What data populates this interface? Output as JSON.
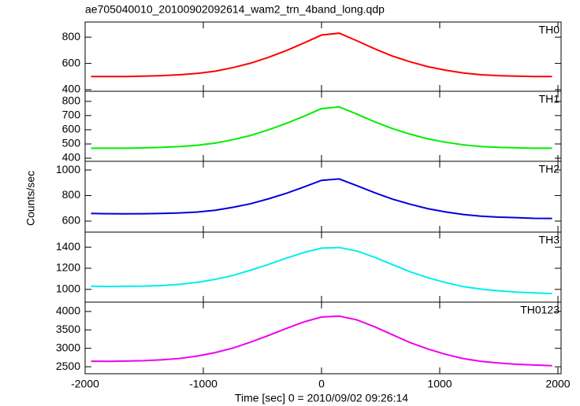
{
  "chart_data": {
    "type": "line",
    "title": "ae705040010_20100902092614_wam2_trn_4band_long.qdp",
    "xlabel": "Time [sec] 0 = 2010/09/02 09:26:14",
    "ylabel": "Counts/sec",
    "xlim": [
      -2000,
      2000
    ],
    "xticks": [
      -2000,
      -1000,
      0,
      1000,
      2000
    ],
    "x": [
      -1950,
      -1800,
      -1650,
      -1500,
      -1350,
      -1200,
      -1050,
      -900,
      -750,
      -600,
      -450,
      -300,
      -150,
      0,
      150,
      300,
      450,
      600,
      750,
      900,
      1050,
      1200,
      1350,
      1500,
      1650,
      1800,
      1950
    ],
    "series": [
      {
        "name": "TH0",
        "color": "#ff0000",
        "ylim": [
          388,
          915
        ],
        "yticks": [
          400,
          600,
          800
        ],
        "values": [
          500,
          500,
          500,
          503,
          507,
          514,
          524,
          541,
          568,
          602,
          646,
          697,
          755,
          816,
          830,
          772,
          711,
          656,
          612,
          575,
          548,
          527,
          514,
          507,
          503,
          500,
          500
        ]
      },
      {
        "name": "TH1",
        "color": "#00ee00",
        "ylim": [
          378,
          871
        ],
        "yticks": [
          400,
          500,
          600,
          700,
          800
        ],
        "values": [
          470,
          470,
          470,
          473,
          476,
          482,
          491,
          506,
          530,
          560,
          599,
          644,
          695,
          749,
          761,
          710,
          656,
          608,
          569,
          536,
          512,
          494,
          482,
          476,
          473,
          470,
          470
        ]
      },
      {
        "name": "TH2",
        "color": "#0000dd",
        "ylim": [
          514,
          1068
        ],
        "yticks": [
          600,
          800,
          1000
        ],
        "values": [
          660,
          658,
          657,
          658,
          660,
          664,
          671,
          685,
          708,
          736,
          774,
          817,
          867,
          919,
          930,
          877,
          822,
          772,
          732,
          697,
          672,
          652,
          639,
          631,
          627,
          622,
          621
        ]
      },
      {
        "name": "TH3",
        "color": "#00eeee",
        "ylim": [
          879,
          1543
        ],
        "yticks": [
          1000,
          1200,
          1400
        ],
        "values": [
          1030,
          1027,
          1029,
          1031,
          1037,
          1048,
          1067,
          1095,
          1132,
          1182,
          1236,
          1295,
          1350,
          1391,
          1397,
          1364,
          1304,
          1235,
          1167,
          1111,
          1064,
          1026,
          1002,
          986,
          974,
          967,
          960
        ]
      },
      {
        "name": "TH0123",
        "color": "#ee00ee",
        "ylim": [
          2310,
          4253
        ],
        "yticks": [
          2500,
          3000,
          3500,
          4000
        ],
        "values": [
          2650,
          2646,
          2655,
          2665,
          2688,
          2725,
          2791,
          2884,
          3005,
          3169,
          3346,
          3537,
          3715,
          3850,
          3873,
          3771,
          3584,
          3369,
          3155,
          2982,
          2837,
          2721,
          2646,
          2600,
          2567,
          2548,
          2530
        ]
      }
    ]
  }
}
